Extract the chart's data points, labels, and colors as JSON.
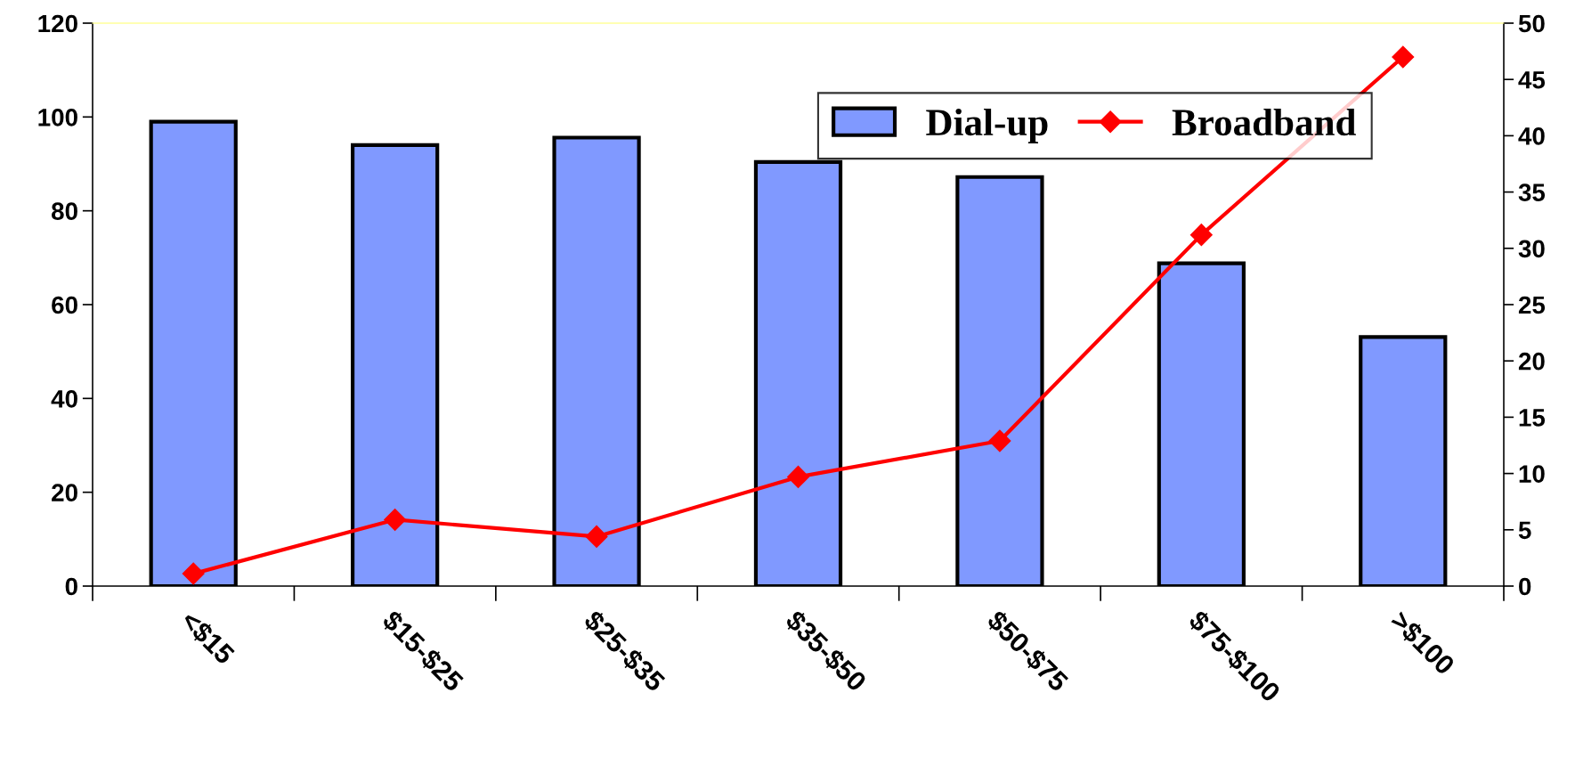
{
  "chart_data": {
    "type": "bar",
    "categories": [
      "<$15",
      "$15-$25",
      "$25-$35",
      "$35-$50",
      "$50-$75",
      "$75-$100",
      ">$100"
    ],
    "series": [
      {
        "name": "Dial-up",
        "color": "#8099ff",
        "values": [
          99,
          94,
          95.6,
          90.4,
          87.2,
          68.8,
          53.1
        ]
      },
      {
        "name": "Broadband",
        "type": "line",
        "axis": "y2",
        "color": "#ff0000",
        "marker": "diamond",
        "values": [
          1.1,
          5.9,
          4.4,
          9.7,
          12.9,
          31.2,
          47.0
        ]
      }
    ],
    "ylim": [
      0,
      120
    ],
    "yticks": [
      0,
      20,
      40,
      60,
      80,
      100,
      120
    ],
    "y2lim": [
      0,
      50
    ],
    "y2ticks": [
      0,
      5,
      10,
      15,
      20,
      25,
      30,
      35,
      40,
      45,
      50
    ],
    "legend": "top right",
    "grid": false
  }
}
